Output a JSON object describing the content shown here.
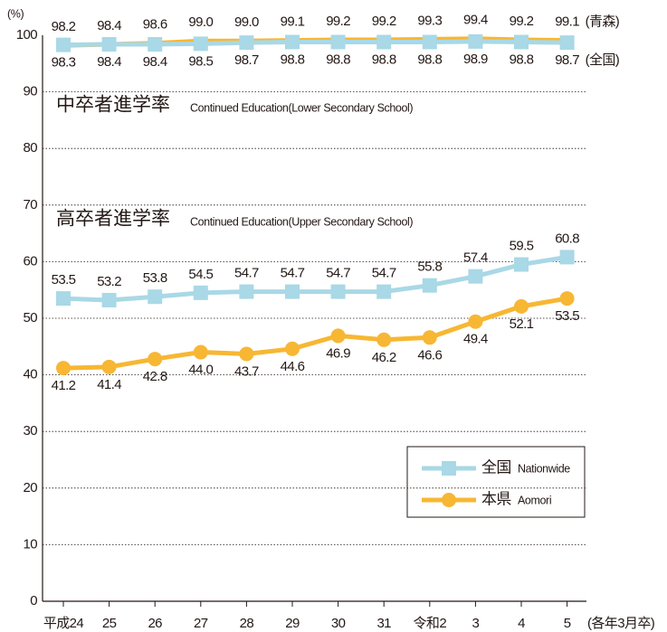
{
  "chart_data": {
    "type": "line",
    "y_axis_label": "(%)",
    "x_axis_label": "(各年3月卒)",
    "categories": [
      "平成24",
      "25",
      "26",
      "27",
      "28",
      "29",
      "30",
      "31",
      "令和2",
      "3",
      "4",
      "5"
    ],
    "ylim": [
      0,
      100
    ],
    "yticks": [
      0,
      10,
      20,
      30,
      40,
      50,
      60,
      70,
      80,
      90,
      100
    ],
    "grid": true,
    "annotations": [
      {
        "text": "中卒者進学率",
        "text_en": "Continued Education(Lower Secondary School)"
      },
      {
        "text": "高卒者進学率",
        "text_en": "Continued Education(Upper Secondary School)"
      }
    ],
    "series": [
      {
        "name": "全国",
        "name_en": "Nationwide",
        "color": "#a9d8e6",
        "marker": "square",
        "label_position": "above",
        "values": [
          53.5,
          53.2,
          53.8,
          54.5,
          54.7,
          54.7,
          54.7,
          54.7,
          55.8,
          57.4,
          59.5,
          60.8
        ]
      },
      {
        "name": "本県",
        "name_en": "Aomori",
        "color": "#f7b733",
        "marker": "circle",
        "label_position": "below",
        "values": [
          41.2,
          41.4,
          42.8,
          44.0,
          43.7,
          44.6,
          46.9,
          46.2,
          46.6,
          49.4,
          52.1,
          53.5
        ],
        "value_labels": [
          "41.2",
          "41.4",
          "42.8",
          "44.0",
          "43.7",
          "44.6",
          "46.9",
          "46.2",
          "46.6",
          "49.4",
          "52.1",
          "53.5"
        ]
      },
      {
        "name": "(全国)",
        "color": "#a9d8e6",
        "marker": "square",
        "label_position": "below",
        "values": [
          98.3,
          98.4,
          98.4,
          98.5,
          98.7,
          98.8,
          98.8,
          98.8,
          98.8,
          98.9,
          98.8,
          98.7
        ]
      },
      {
        "name": "(青森)",
        "color": "#f7b733",
        "marker": "line",
        "label_position": "above",
        "values": [
          98.2,
          98.4,
          98.6,
          99.0,
          99.0,
          99.1,
          99.2,
          99.2,
          99.3,
          99.4,
          99.2,
          99.1
        ],
        "value_labels": [
          "98.2",
          "98.4",
          "98.6",
          "99.0",
          "99.0",
          "99.1",
          "99.2",
          "99.2",
          "99.3",
          "99.4",
          "99.2",
          "99.1"
        ]
      }
    ]
  }
}
